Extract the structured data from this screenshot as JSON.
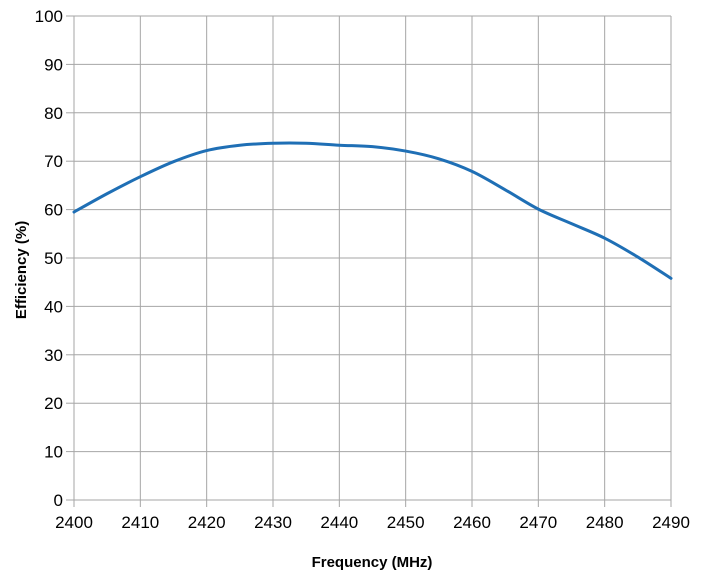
{
  "chart_data": {
    "type": "line",
    "title": "",
    "xlabel": "Frequency (MHz)",
    "ylabel": "Efficiency (%)",
    "xlim": [
      2400,
      2490
    ],
    "ylim": [
      0,
      100
    ],
    "xticks": [
      2400,
      2410,
      2420,
      2430,
      2440,
      2450,
      2460,
      2470,
      2480,
      2490
    ],
    "yticks": [
      0,
      10,
      20,
      30,
      40,
      50,
      60,
      70,
      80,
      90,
      100
    ],
    "grid": true,
    "legend": "none",
    "series": [
      {
        "color": "#1f6fb5",
        "x": [
          2400,
          2405,
          2410,
          2415,
          2420,
          2425,
          2430,
          2435,
          2440,
          2445,
          2450,
          2455,
          2460,
          2465,
          2470,
          2475,
          2480,
          2485,
          2490
        ],
        "y": [
          59.5,
          63.3,
          66.8,
          69.9,
          72.2,
          73.3,
          73.7,
          73.7,
          73.3,
          73.0,
          72.1,
          70.5,
          67.9,
          64.1,
          60.1,
          57.1,
          54.1,
          50.2,
          45.8
        ]
      }
    ]
  }
}
